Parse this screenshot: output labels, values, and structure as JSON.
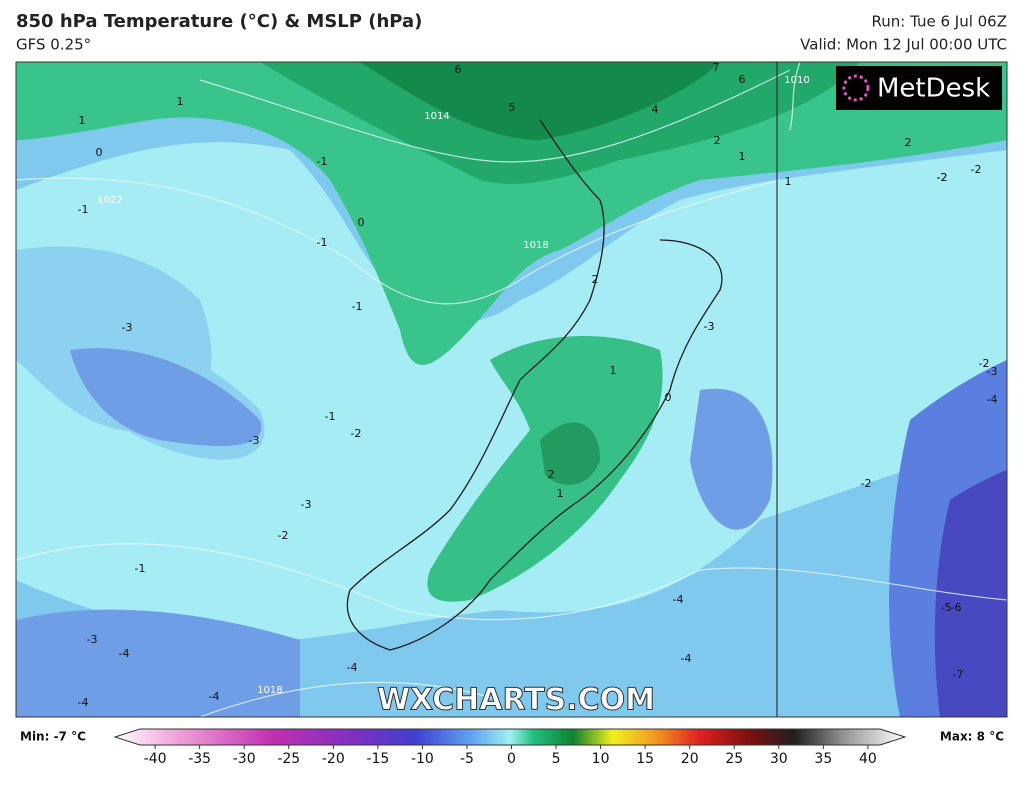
{
  "header": {
    "title": "850 hPa Temperature (°C) & MSLP (hPa)",
    "subtitle": "GFS 0.25°",
    "run": "Run: Tue 6 Jul 06Z",
    "valid": "Valid: Mon 12 Jul 00:00 UTC"
  },
  "logo": "MetDesk",
  "watermark": "WXCHARTS.COM",
  "map": {
    "contour_labels": [
      "1",
      "1",
      "0",
      "-1",
      "-1",
      "0",
      "-1",
      "-3",
      "-1",
      "-2",
      "-3",
      "-3",
      "-2",
      "-1",
      "-3",
      "-4",
      "-4",
      "-4",
      "-4",
      "-1",
      "1",
      "2",
      "1",
      "0",
      "-4",
      "-4",
      "-3",
      "-2",
      "-2",
      "-3",
      "-4",
      "-2",
      "-5",
      "-6",
      "-7",
      "5",
      "6",
      "4",
      "2",
      "2",
      "1",
      "2",
      "-2",
      "-2",
      "1",
      "6",
      "7"
    ],
    "isobar_labels": [
      "1014",
      "1022",
      "1018",
      "1010",
      "1018"
    ]
  },
  "colorbar": {
    "min_label": "Min: -7 °C",
    "max_label": "Max: 8 °C",
    "ticks": [
      -40,
      -35,
      -30,
      -25,
      -20,
      -15,
      -10,
      -5,
      0,
      5,
      10,
      15,
      20,
      25,
      30,
      35,
      40
    ]
  }
}
